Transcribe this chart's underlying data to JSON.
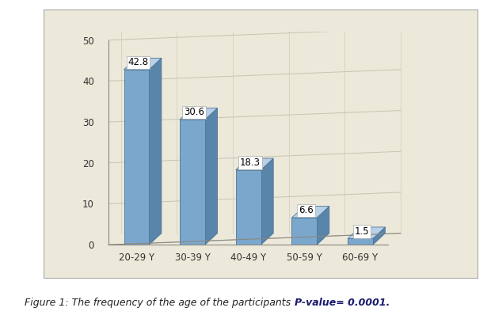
{
  "categories": [
    "20-29 Y",
    "30-39 Y",
    "40-49 Y",
    "50-59 Y",
    "60-69 Y"
  ],
  "values": [
    42.8,
    30.6,
    18.3,
    6.6,
    1.5
  ],
  "bar_face_color": "#7ba7cc",
  "bar_side_color": "#5a85aa",
  "bar_top_color": "#b8d0e8",
  "bar_edge_color": "#4a7499",
  "ylim": [
    0,
    50
  ],
  "yticks": [
    0,
    10,
    20,
    30,
    40,
    50
  ],
  "plot_bg": "#ece9da",
  "outer_bg": "#ece9da",
  "figure_bg": "#ffffff",
  "grid_color": "#c8c4b0",
  "axis_color": "#888880",
  "tick_fontsize": 8.5,
  "value_fontsize": 8.5,
  "caption_main": "Figure 1: The frequency of the age of the participants ",
  "caption_pvalue": "P-value= 0.0001.",
  "caption_color": "#1a1a6e",
  "caption_fontsize": 9
}
